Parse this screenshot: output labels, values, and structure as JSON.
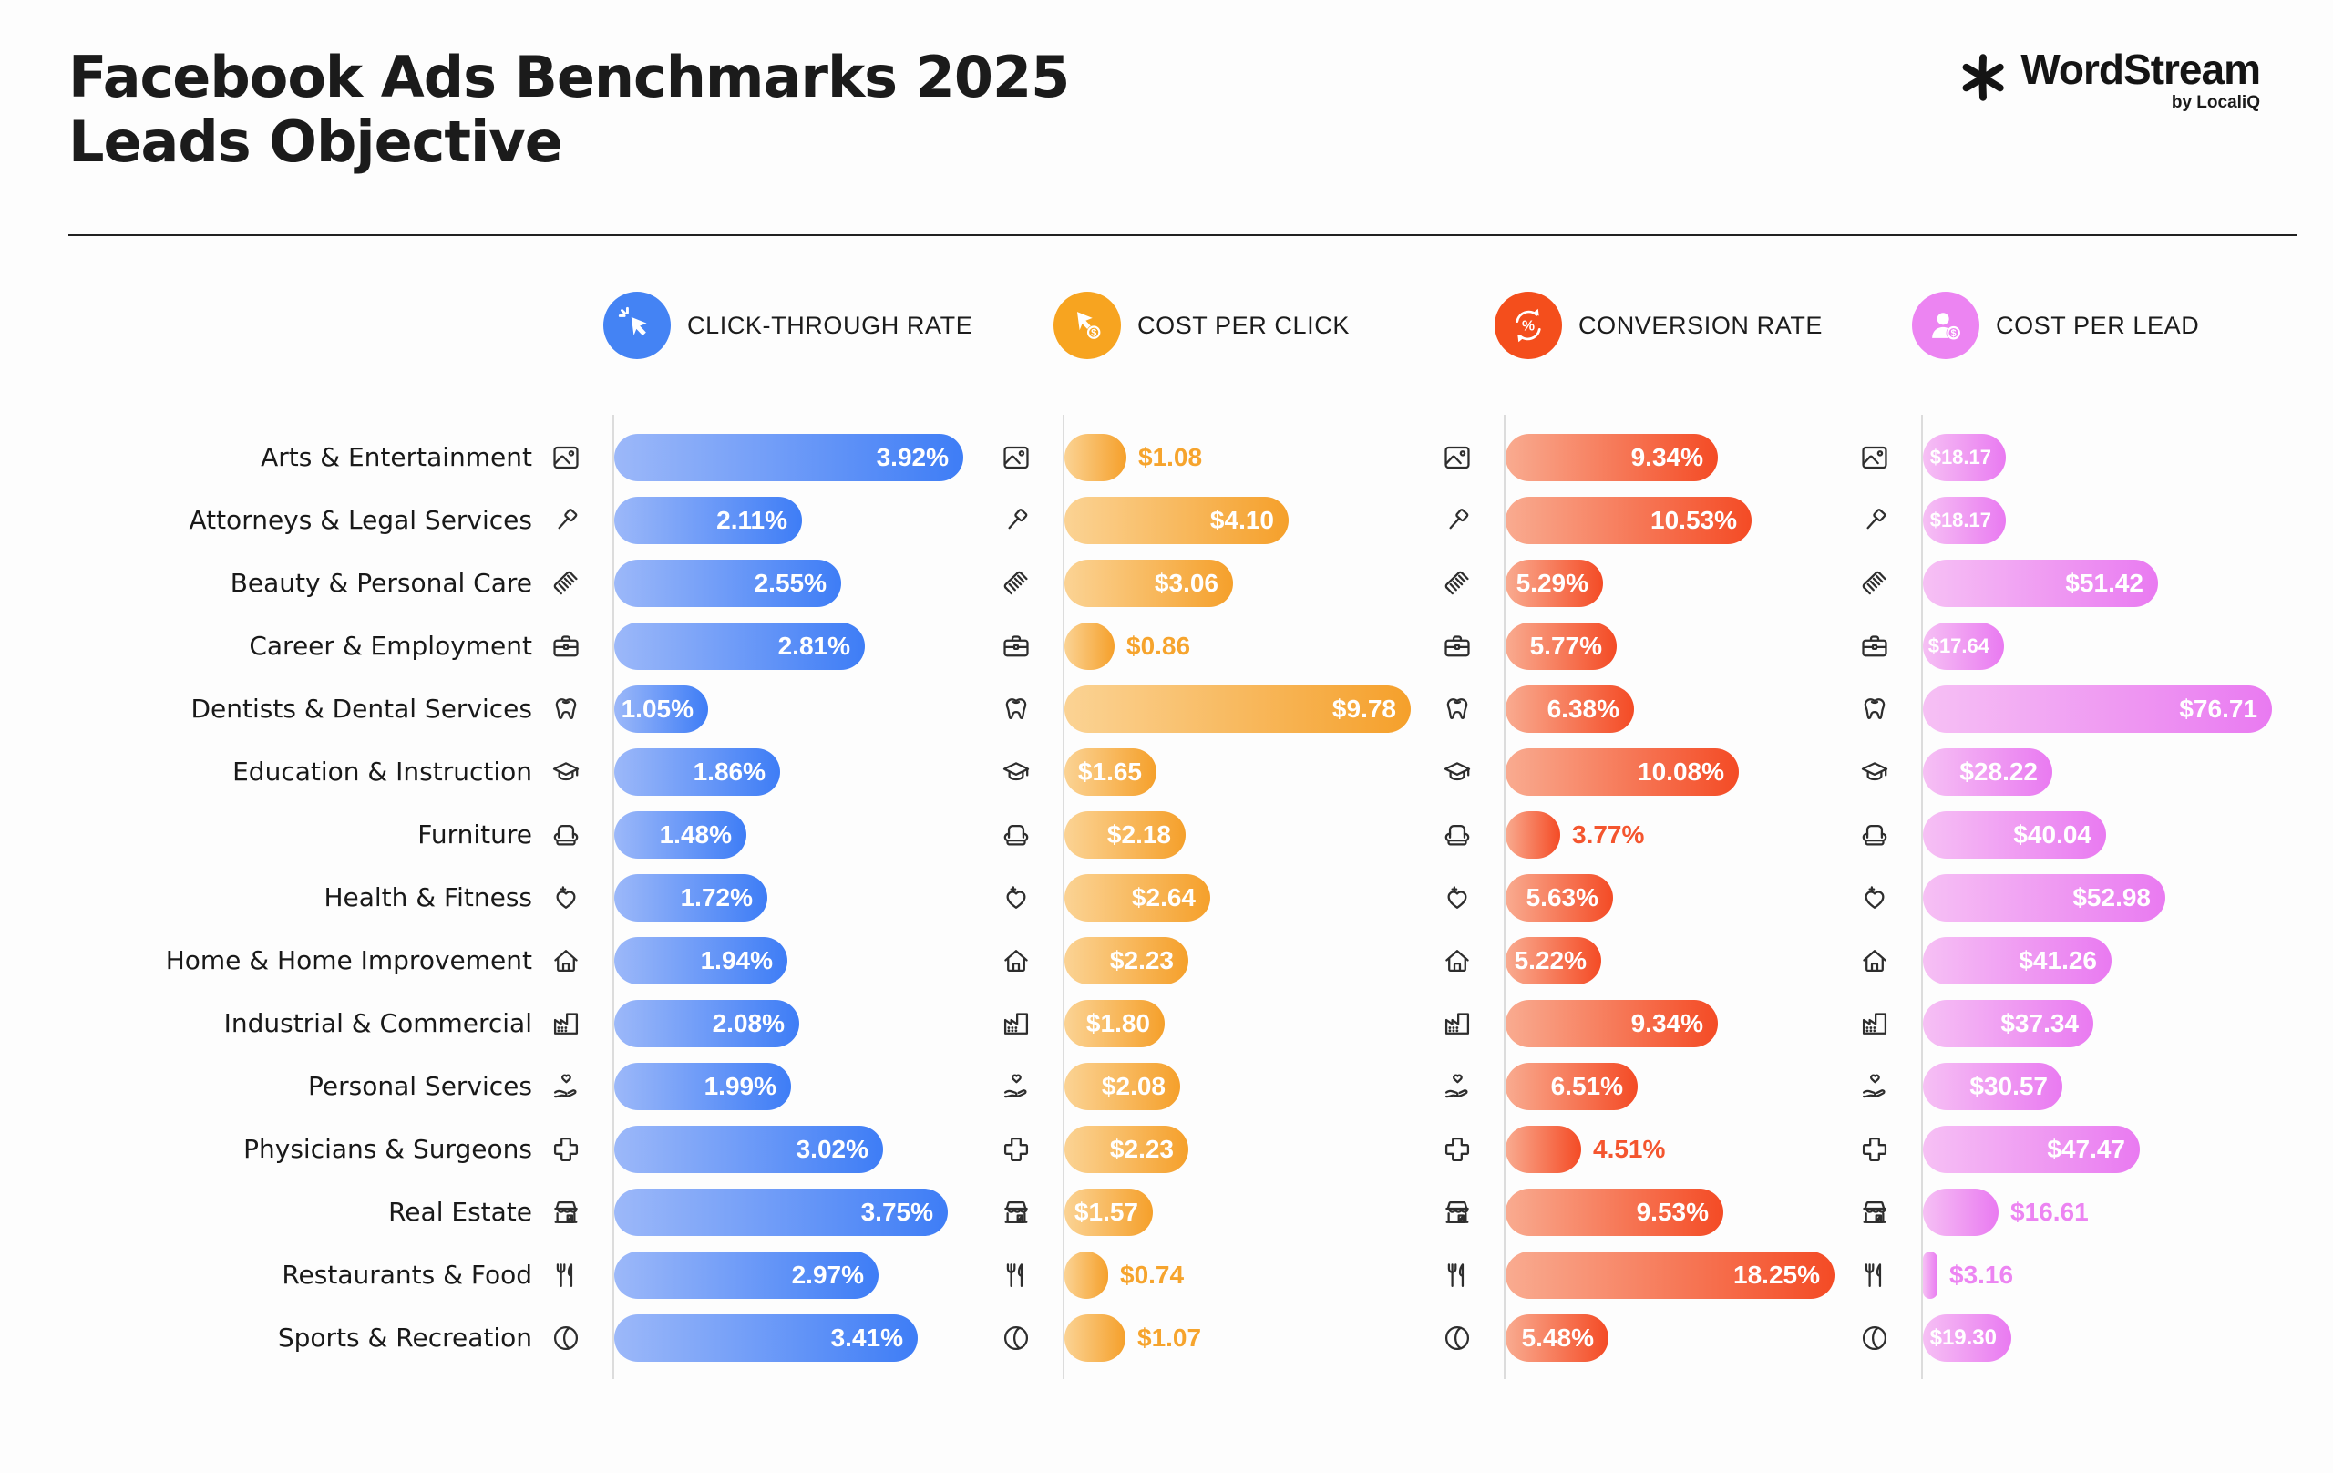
{
  "header": {
    "title_line1": "Facebook Ads Benchmarks 2025",
    "title_line2": "Leads Objective",
    "logo": {
      "brand": "WordStream",
      "byline": "by LocaliQ",
      "icon": "asterisk-logo-icon"
    }
  },
  "columns": [
    {
      "id": "ctr",
      "header": "CLICK-THROUGH RATE",
      "icon": "cursor-click-icon",
      "accent": "#4483F4",
      "gradient": [
        "#9CB8F9",
        "#3E7DF6"
      ],
      "outside_text_color": "#4483F4"
    },
    {
      "id": "cpc",
      "header": "COST PER CLICK",
      "icon": "cursor-dollar-icon",
      "accent": "#F7A420",
      "gradient": [
        "#FBD394",
        "#F5A02B"
      ],
      "outside_text_color": "#F6A42D"
    },
    {
      "id": "cvr",
      "header": "CONVERSION RATE",
      "icon": "percent-cycle-icon",
      "accent": "#F44E1C",
      "gradient": [
        "#F9AB90",
        "#F44B25"
      ],
      "outside_text_color": "#F4552E"
    },
    {
      "id": "cpl",
      "header": "COST PER LEAD",
      "icon": "person-dollar-icon",
      "accent": "#EC84F2",
      "gradient": [
        "#F6C0F4",
        "#E97AF1"
      ],
      "outside_text_color": "#EC84F2"
    }
  ],
  "industries": [
    {
      "name": "Arts & Entertainment",
      "icon": "picture-icon"
    },
    {
      "name": "Attorneys & Legal Services",
      "icon": "gavel-icon"
    },
    {
      "name": "Beauty & Personal Care",
      "icon": "comb-icon"
    },
    {
      "name": "Career & Employment",
      "icon": "briefcase-icon"
    },
    {
      "name": "Dentists & Dental Services",
      "icon": "tooth-icon"
    },
    {
      "name": "Education & Instruction",
      "icon": "graduation-cap-icon"
    },
    {
      "name": "Furniture",
      "icon": "armchair-icon"
    },
    {
      "name": "Health & Fitness",
      "icon": "heart-plus-icon"
    },
    {
      "name": "Home & Home Improvement",
      "icon": "house-icon"
    },
    {
      "name": "Industrial & Commercial",
      "icon": "factory-icon"
    },
    {
      "name": "Personal Services",
      "icon": "hand-heart-icon"
    },
    {
      "name": "Physicians & Surgeons",
      "icon": "medical-cross-icon"
    },
    {
      "name": "Real Estate",
      "icon": "storefront-icon"
    },
    {
      "name": "Restaurants & Food",
      "icon": "fork-knife-icon"
    },
    {
      "name": "Sports & Recreation",
      "icon": "ball-icon"
    }
  ],
  "chart_data": {
    "type": "bar",
    "orientation": "horizontal",
    "title": "Facebook Ads Benchmarks 2025 — Leads Objective",
    "legend_position": "top",
    "grid": false,
    "categories": [
      "Arts & Entertainment",
      "Attorneys & Legal Services",
      "Beauty & Personal Care",
      "Career & Employment",
      "Dentists & Dental Services",
      "Education & Instruction",
      "Furniture",
      "Health & Fitness",
      "Home & Home Improvement",
      "Industrial & Commercial",
      "Personal Services",
      "Physicians & Surgeons",
      "Real Estate",
      "Restaurants & Food",
      "Sports & Recreation"
    ],
    "series": [
      {
        "name": "Click-Through Rate",
        "unit": "%",
        "values": [
          3.92,
          2.11,
          2.55,
          2.81,
          1.05,
          1.86,
          1.48,
          1.72,
          1.94,
          2.08,
          1.99,
          3.02,
          3.75,
          2.97,
          3.41
        ],
        "labels": [
          "3.92%",
          "2.11%",
          "2.55%",
          "2.81%",
          "1.05%",
          "1.86%",
          "1.48%",
          "1.72%",
          "1.94%",
          "2.08%",
          "1.99%",
          "3.02%",
          "3.75%",
          "2.97%",
          "3.41%"
        ]
      },
      {
        "name": "Cost Per Click",
        "unit": "USD",
        "values": [
          1.08,
          4.1,
          3.06,
          0.86,
          9.78,
          1.65,
          2.18,
          2.64,
          2.23,
          1.8,
          2.08,
          2.23,
          1.57,
          0.74,
          1.07
        ],
        "labels": [
          "$1.08",
          "$4.10",
          "$3.06",
          "$0.86",
          "$9.78",
          "$1.65",
          "$2.18",
          "$2.64",
          "$2.23",
          "$1.80",
          "$2.08",
          "$2.23",
          "$1.57",
          "$0.74",
          "$1.07"
        ]
      },
      {
        "name": "Conversion Rate",
        "unit": "%",
        "values": [
          9.34,
          10.53,
          5.29,
          5.77,
          6.38,
          10.08,
          3.77,
          5.63,
          5.22,
          9.34,
          6.51,
          4.51,
          9.53,
          18.25,
          5.48
        ],
        "labels": [
          "9.34%",
          "10.53%",
          "5.29%",
          "5.77%",
          "6.38%",
          "10.08%",
          "3.77%",
          "5.63%",
          "5.22%",
          "9.34%",
          "6.51%",
          "4.51%",
          "9.53%",
          "18.25%",
          "5.48%"
        ]
      },
      {
        "name": "Cost Per Lead",
        "unit": "USD",
        "values": [
          18.17,
          18.17,
          51.42,
          17.64,
          76.71,
          28.22,
          40.04,
          52.98,
          41.26,
          37.34,
          30.57,
          47.47,
          16.61,
          3.16,
          19.3
        ],
        "labels": [
          "$18.17",
          "$18.17",
          "$51.42",
          "$17.64",
          "$76.71",
          "$28.22",
          "$40.04",
          "$52.98",
          "$41.26",
          "$37.34",
          "$30.57",
          "$47.47",
          "$16.61",
          "$3.16",
          "$19.30"
        ]
      }
    ]
  }
}
